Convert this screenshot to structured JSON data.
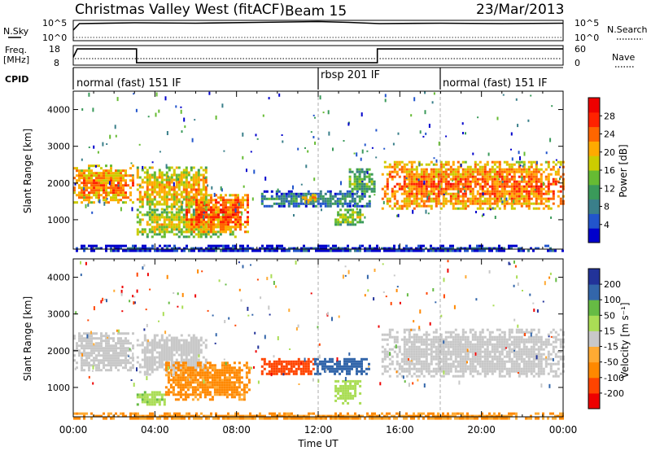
{
  "header": {
    "station": "Christmas Valley West (fitACF)",
    "beam": "Beam 15",
    "date": "23/Mar/2013"
  },
  "nsky_panel": {
    "left_label": "N.Sky",
    "left_ticks": [
      "10^5",
      "10^0"
    ],
    "right_ticks": [
      "10^5",
      "10^0"
    ],
    "right_label": "N.Search"
  },
  "freq_panel": {
    "left_label_1": "Freq.",
    "left_label_2": "[MHz]",
    "left_ticks": [
      "18",
      "8"
    ],
    "right_ticks": [
      "60",
      "0"
    ],
    "right_label": "Nave"
  },
  "cpid_panel": {
    "label": "CPID",
    "segments": [
      {
        "label": "normal (fast) 151 IF",
        "start_hour": 0
      },
      {
        "label": "rbsp 201 IF",
        "start_hour": 12
      },
      {
        "label": "normal (fast) 151 IF",
        "start_hour": 18
      }
    ]
  },
  "time_axis": {
    "label": "Time UT",
    "ticks": [
      "00:00",
      "04:00",
      "08:00",
      "12:00",
      "16:00",
      "20:00",
      "00:00"
    ],
    "range_hours": [
      0,
      24
    ]
  },
  "power_panel": {
    "ylabel": "Slant Range [km]",
    "yticks": [
      "4000",
      "3000",
      "2000",
      "1000"
    ],
    "colorbar_label": "Power [dB]",
    "colorbar_ticks": [
      "28",
      "24",
      "20",
      "16",
      "12",
      "8",
      "4"
    ]
  },
  "velocity_panel": {
    "ylabel": "Slant Range [km]",
    "yticks": [
      "4000",
      "3000",
      "2000",
      "1000"
    ],
    "colorbar_label": "Velocity [m s⁻¹]",
    "colorbar_ticks": [
      "200",
      "100",
      "50",
      "15",
      "-15",
      "-50",
      "-100",
      "-200"
    ]
  },
  "colors": {
    "power_scale": [
      "#0000cc",
      "#2255cc",
      "#3a7f8a",
      "#3a9a5a",
      "#66bb33",
      "#cccc00",
      "#ffaa00",
      "#ff6600",
      "#ff2200",
      "#ee0000"
    ],
    "velocity_scale": [
      "#223399",
      "#3366aa",
      "#66bb44",
      "#aadd55",
      "#c8c8c8",
      "#ffaa33",
      "#ff8800",
      "#ff4400",
      "#ee0000"
    ]
  },
  "chart_data": {
    "type": "heatmap",
    "x_range_hours": [
      0,
      24
    ],
    "y_range_km": [
      200,
      4500
    ],
    "nsky_series": {
      "x_hours": [
        0,
        0.3,
        3,
        6,
        9,
        12,
        13.5,
        15,
        18,
        21,
        24
      ],
      "values_log10": [
        2.6,
        4.2,
        4.4,
        4.3,
        4.5,
        4.7,
        4.5,
        4.2,
        4.3,
        4.2,
        4.3
      ]
    },
    "freq_series": {
      "x_hours": [
        0,
        0.2,
        3.1,
        3.1,
        14.9,
        14.9,
        24
      ],
      "values_mhz": [
        12,
        16.3,
        16.3,
        9.2,
        9.2,
        16.3,
        16.3
      ]
    },
    "power_blobs": [
      {
        "t0": 0.0,
        "t1": 2.9,
        "r0": 1450,
        "r1": 2500,
        "power_db": 24
      },
      {
        "t0": 3.1,
        "t1": 6.5,
        "r0": 1300,
        "r1": 2450,
        "power_db": 22
      },
      {
        "t0": 3.1,
        "t1": 8.0,
        "r0": 550,
        "r1": 1300,
        "power_db": 20
      },
      {
        "t0": 5.5,
        "t1": 8.6,
        "r0": 700,
        "r1": 1700,
        "power_db": 26
      },
      {
        "t0": 9.2,
        "t1": 14.5,
        "r0": 1350,
        "r1": 1800,
        "power_db": 12
      },
      {
        "t0": 11.2,
        "t1": 12.0,
        "r0": 1500,
        "r1": 1700,
        "power_db": 24
      },
      {
        "t0": 12.8,
        "t1": 14.2,
        "r0": 900,
        "r1": 1300,
        "power_db": 18
      },
      {
        "t0": 13.5,
        "t1": 14.7,
        "r0": 1750,
        "r1": 2400,
        "power_db": 16
      },
      {
        "t0": 15.1,
        "t1": 24.0,
        "r0": 1300,
        "r1": 2600,
        "power_db": 25
      },
      {
        "t0": 0.0,
        "t1": 24.0,
        "r0": 150,
        "r1": 320,
        "power_db": 8
      }
    ],
    "velocity_blobs": [
      {
        "t0": 0.0,
        "t1": 2.9,
        "r0": 1450,
        "r1": 2500,
        "velocity": 0
      },
      {
        "t0": 3.1,
        "t1": 6.5,
        "r0": 1350,
        "r1": 2450,
        "velocity": 0
      },
      {
        "t0": 3.1,
        "t1": 4.5,
        "r0": 550,
        "r1": 900,
        "velocity": 40
      },
      {
        "t0": 4.5,
        "t1": 8.6,
        "r0": 700,
        "r1": 1700,
        "velocity": -60
      },
      {
        "t0": 9.2,
        "t1": 11.8,
        "r0": 1350,
        "r1": 1800,
        "velocity": -150
      },
      {
        "t0": 11.8,
        "t1": 14.5,
        "r0": 1350,
        "r1": 1800,
        "velocity": 150
      },
      {
        "t0": 12.8,
        "t1": 14.0,
        "r0": 600,
        "r1": 1200,
        "velocity": 30
      },
      {
        "t0": 15.1,
        "t1": 24.0,
        "r0": 1300,
        "r1": 2600,
        "velocity": 0
      },
      {
        "t0": 0.0,
        "t1": 24.0,
        "r0": 150,
        "r1": 320,
        "velocity": -50
      }
    ]
  }
}
